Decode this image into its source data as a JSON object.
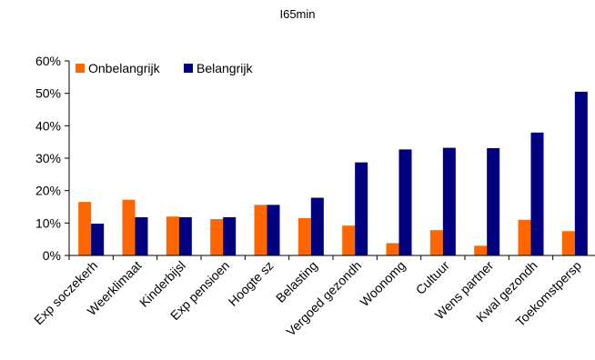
{
  "chart_data": {
    "type": "bar",
    "title": "I65min",
    "categories": [
      "Exp soczekerh",
      "Weerklimaat",
      "Kinderbijsl",
      "Exp pensioen",
      "Hoogte sz",
      "Belasting",
      "Vergoed gezondh",
      "Woonomg",
      "Cultuur",
      "Wens partner",
      "Kwal gezondh",
      "Toekomstpersp"
    ],
    "series": [
      {
        "name": "Onbelangrijk",
        "color": "#ff6600",
        "values": [
          16.5,
          17.2,
          12.0,
          11.2,
          15.6,
          11.5,
          9.2,
          3.8,
          7.8,
          3.0,
          11.0,
          7.5
        ]
      },
      {
        "name": "Belangrijk",
        "color": "#000080",
        "values": [
          9.8,
          11.8,
          11.8,
          11.8,
          15.6,
          17.8,
          28.7,
          32.7,
          33.2,
          33.1,
          37.9,
          50.5
        ]
      }
    ],
    "ylim": [
      0,
      60
    ],
    "yticks": [
      "0%",
      "10%",
      "20%",
      "30%",
      "40%",
      "50%",
      "60%"
    ],
    "grid": false,
    "legend": "top-left"
  }
}
